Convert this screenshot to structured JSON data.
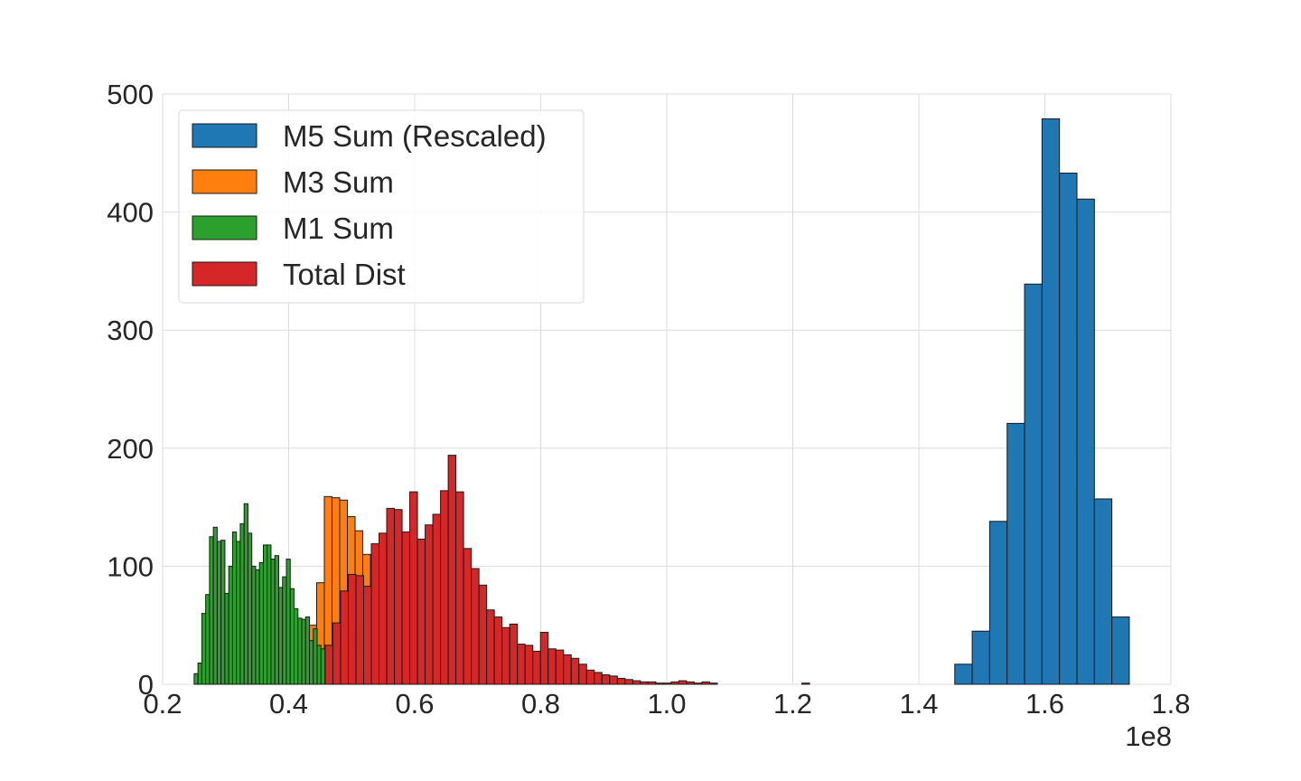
{
  "chart_data": {
    "type": "bar",
    "title": "",
    "xlabel": "",
    "ylabel": "",
    "x_scale_label": "1e8",
    "xlim": [
      0.2,
      1.8
    ],
    "ylim": [
      0,
      500
    ],
    "x_ticks": [
      "0.2",
      "0.4",
      "0.6",
      "0.8",
      "1.0",
      "1.2",
      "1.4",
      "1.6",
      "1.8"
    ],
    "y_ticks": [
      "0",
      "100",
      "200",
      "300",
      "400",
      "500"
    ],
    "grid": true,
    "legend_position": "top-left",
    "series": [
      {
        "name": "M5 Sum (Rescaled)",
        "color": "#1f77b4",
        "bins_start": 1.457,
        "bin_width": 0.0277,
        "values": [
          17,
          45,
          138,
          221,
          339,
          479,
          433,
          411,
          157,
          57
        ]
      },
      {
        "name": "M3 Sum",
        "color": "#ff7f0e",
        "bins_start": 0.42,
        "bin_width": 0.0122,
        "values": [
          25,
          50,
          86,
          159,
          158,
          156,
          142,
          130,
          110,
          90,
          80,
          60,
          40,
          30,
          25,
          20,
          18,
          15,
          12,
          10,
          8,
          6,
          4,
          3,
          2,
          1
        ]
      },
      {
        "name": "M1 Sum",
        "color": "#2ca02c",
        "bins_start": 0.25,
        "bin_width": 0.0061,
        "values": [
          9,
          18,
          60,
          76,
          125,
          133,
          121,
          122,
          77,
          100,
          129,
          121,
          136,
          153,
          128,
          100,
          97,
          103,
          118,
          118,
          106,
          109,
          82,
          91,
          106,
          81,
          64,
          56,
          55,
          57,
          37,
          47,
          33,
          30,
          33,
          26,
          30,
          25,
          25,
          21,
          18,
          18
        ]
      },
      {
        "name": "Total Dist",
        "color": "#d62728",
        "bins_start": 0.458,
        "bin_width": 0.0122,
        "values": [
          33,
          52,
          79,
          93,
          92,
          83,
          119,
          128,
          149,
          148,
          129,
          163,
          123,
          135,
          144,
          164,
          194,
          163,
          115,
          98,
          84,
          63,
          57,
          48,
          51,
          34,
          33,
          28,
          44,
          30,
          29,
          25,
          22,
          17,
          12,
          10,
          8,
          7,
          5,
          4,
          3,
          2,
          2,
          1,
          1,
          2,
          3,
          2,
          1,
          2,
          1,
          0,
          0,
          0,
          0,
          0,
          0,
          0,
          0,
          0,
          0,
          0,
          1
        ]
      }
    ]
  }
}
